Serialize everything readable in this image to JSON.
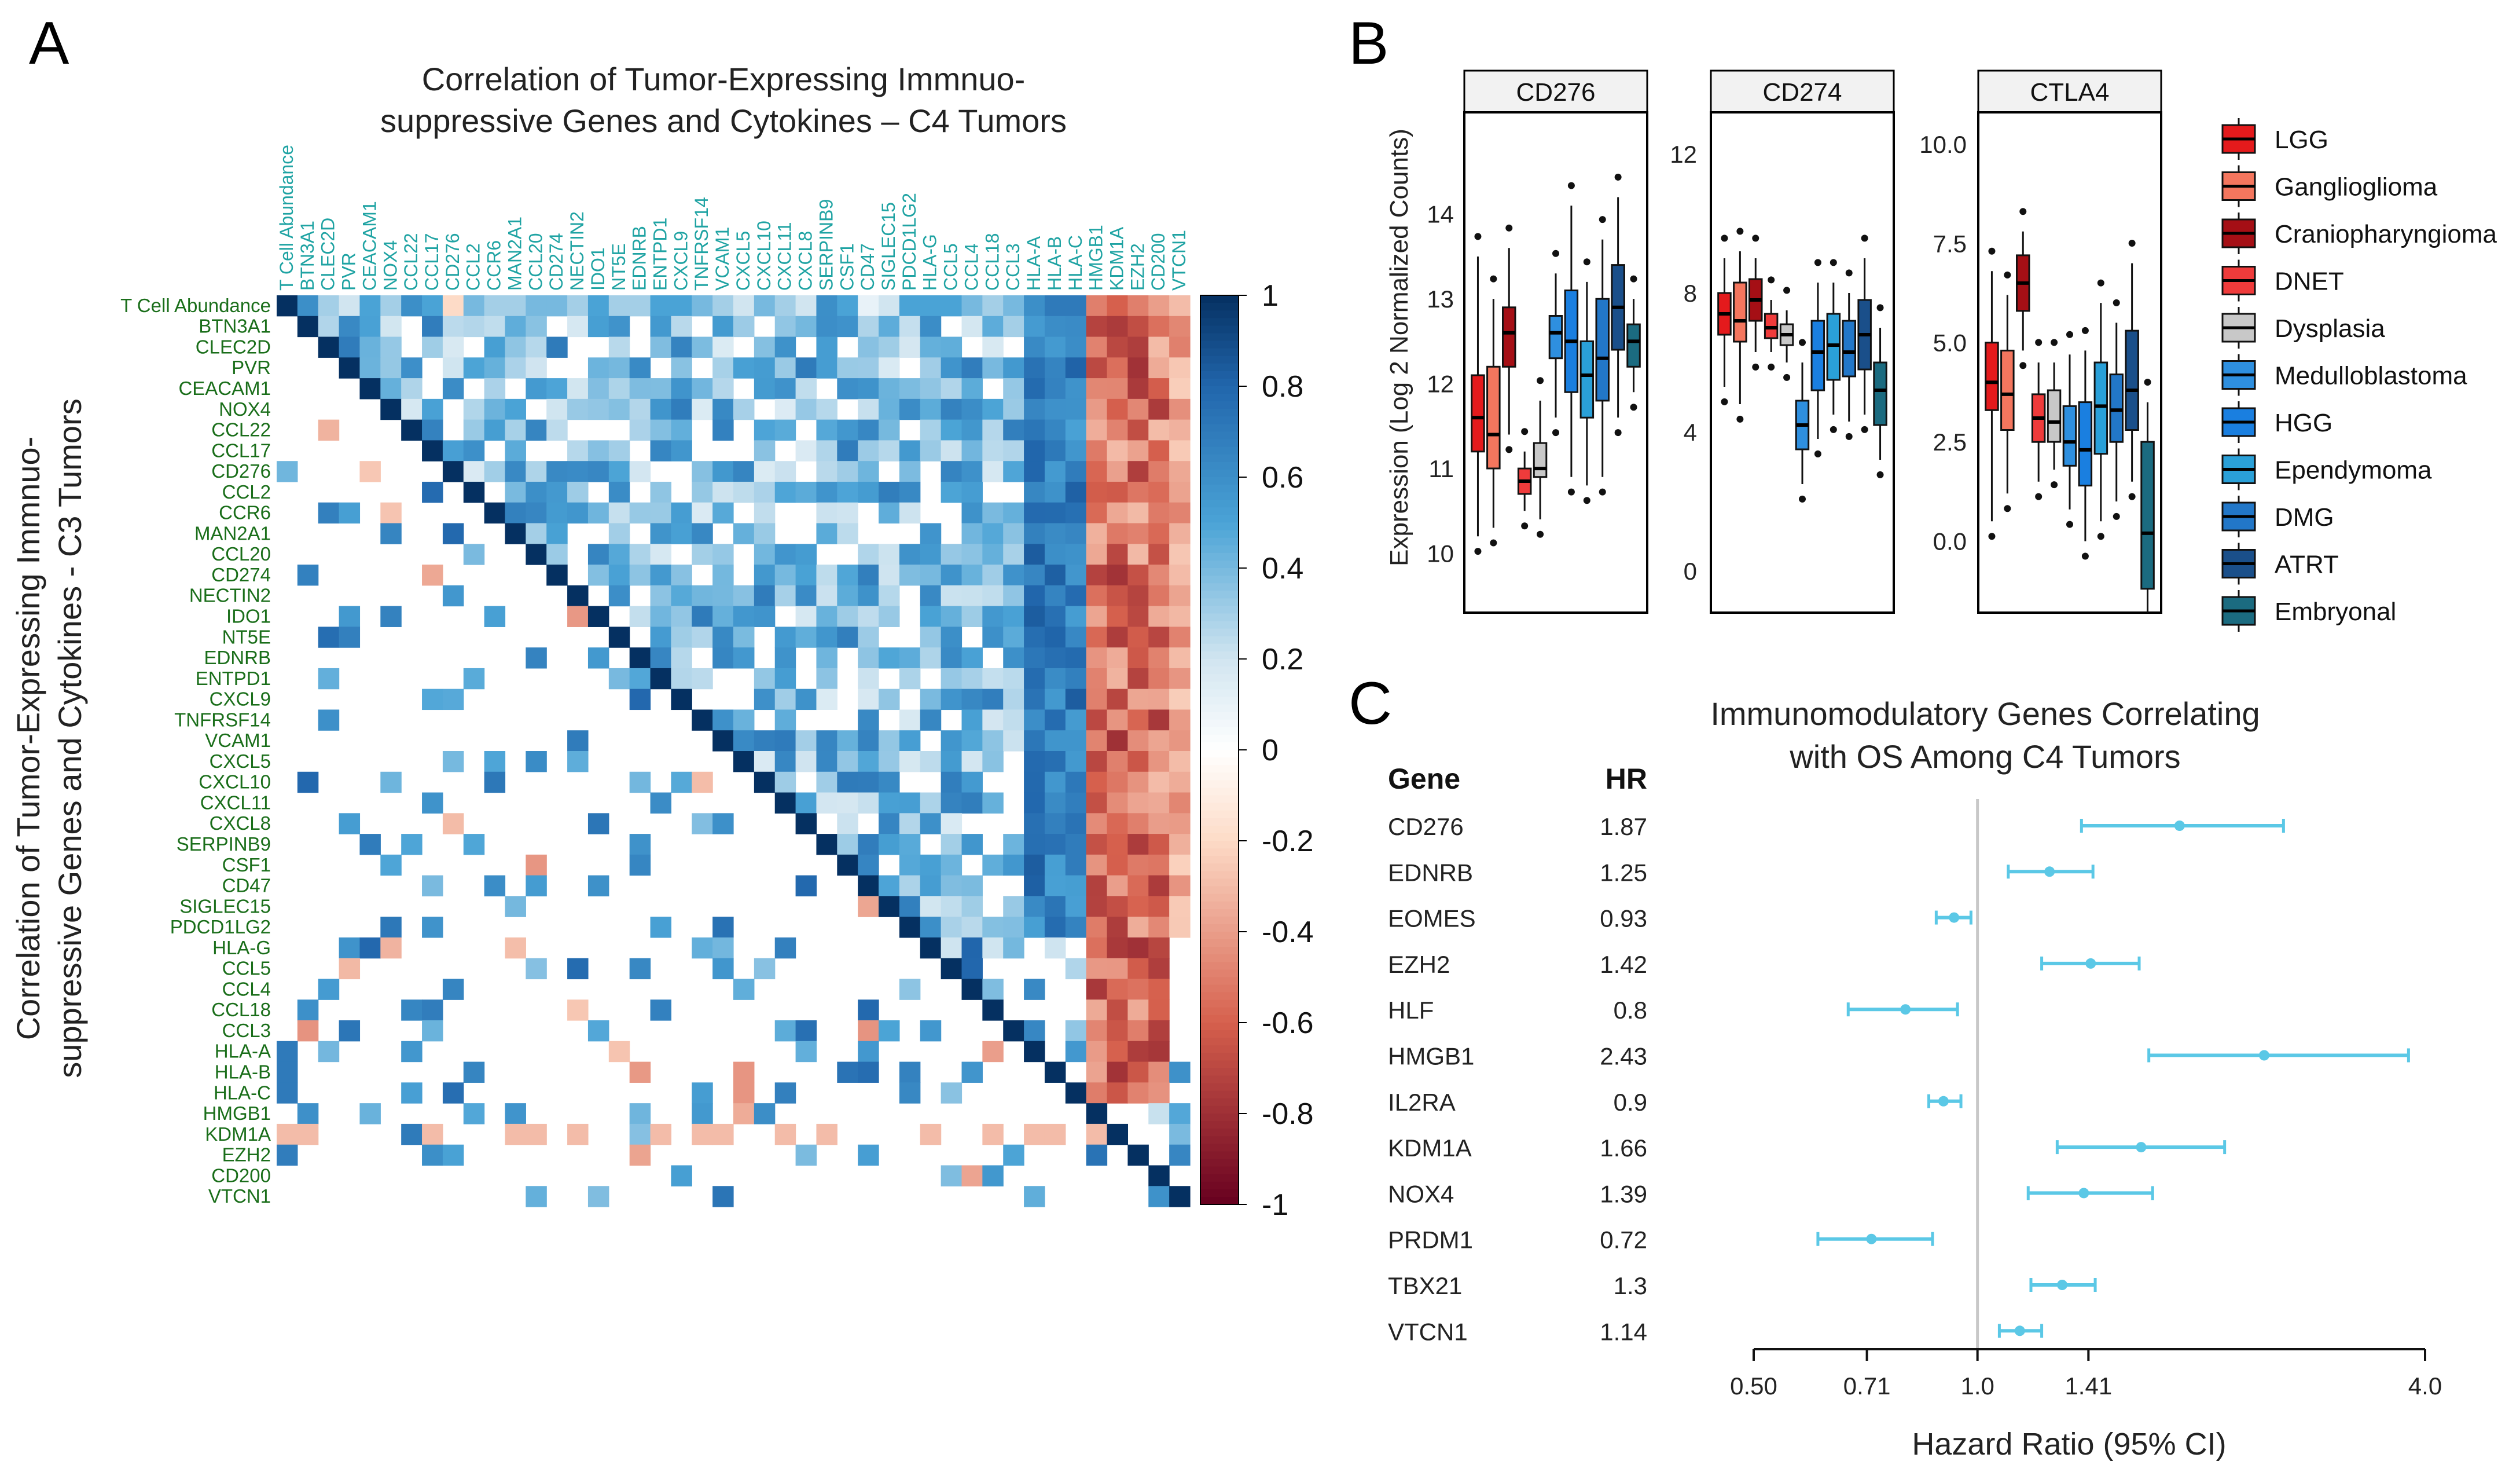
{
  "panel_labels": [
    "A",
    "B",
    "C"
  ],
  "colors": {
    "heat_neg": "#67001f",
    "heat_mid": "#ffffff",
    "heat_pos": "#053061",
    "row_label": "#1a6e1a",
    "col_label": "#1fa3a3",
    "forest": "#5bc8e6",
    "ref_line": "#c8c8c8"
  },
  "chart_data": [
    {
      "id": "A",
      "type": "heatmap",
      "title_lines": [
        "Correlation of Tumor-Expressing Immnuo-",
        "suppressive Genes and Cytokines – C4 Tumors"
      ],
      "ylabel_lines": [
        "Correlation of Tumor-Expressing Immnuo-",
        "suppressive Genes and Cytokines - C3 Tumors"
      ],
      "genes": [
        "T Cell Abundance",
        "BTN3A1",
        "CLEC2D",
        "PVR",
        "CEACAM1",
        "NOX4",
        "CCL22",
        "CCL17",
        "CD276",
        "CCL2",
        "CCR6",
        "MAN2A1",
        "CCL20",
        "CD274",
        "NECTIN2",
        "IDO1",
        "NT5E",
        "EDNRB",
        "ENTPD1",
        "CXCL9",
        "TNFRSF14",
        "VCAM1",
        "CXCL5",
        "CXCL10",
        "CXCL11",
        "CXCL8",
        "SERPINB9",
        "CSF1",
        "CD47",
        "SIGLEC15",
        "PDCD1LG2",
        "HLA-G",
        "CCL5",
        "CCL4",
        "CCL18",
        "CCL3",
        "HLA-A",
        "HLA-B",
        "HLA-C",
        "HMGB1",
        "KDM1A",
        "EZH2",
        "CD200",
        "VTCN1"
      ],
      "colorbar_ticks": [
        "1",
        "0.8",
        "0.6",
        "0.4",
        "0.2",
        "0",
        "-0.2",
        "-0.4",
        "-0.6",
        "-0.8",
        "-1"
      ],
      "colorbar_range": [
        -1,
        1
      ],
      "values": {
        "upper_C4_row_T_Cell_Abundance": [
          1,
          0.6,
          0.3,
          0.2,
          0.5,
          0.3,
          0.6,
          0.5,
          -0.2,
          0.4,
          0.3,
          0.3,
          0.4,
          0.4,
          0.3,
          0.5,
          0.3,
          0.3,
          0.5,
          0.5,
          0.4,
          0.3,
          0.2,
          0.4,
          0.3,
          0.2,
          0.6,
          0.5,
          0.1,
          0.2,
          0.5,
          0.5,
          0.5,
          0.4,
          0.3,
          0.4,
          0.6,
          0.7,
          0.7,
          -0.5,
          -0.6,
          -0.5,
          -0.4,
          -0.3
        ],
        "upper_C4_cols_HLA_A_to_C": [
          0.7,
          0.8,
          0.8
        ],
        "upper_C4_cols_HMGB1_KDM1A": [
          -0.5,
          -0.7
        ],
        "lower_C3_rows_HLA_A_to_C_col_T_Cell_Abundance": [
          0.7,
          0.7,
          0.6
        ],
        "lower_C3_row_KDM1A": [
          -0.3,
          -0.3
        ]
      }
    },
    {
      "id": "B",
      "type": "box",
      "ylabel": "Expression (Log 2 Normalized Counts)",
      "legend": [
        "LGG",
        "Ganglioglioma",
        "Craniopharyngioma",
        "DNET",
        "Dysplasia",
        "Medulloblastoma",
        "HGG",
        "Ependymoma",
        "DMG",
        "ATRT",
        "Embryonal"
      ],
      "legend_colors": [
        "#e41a1c",
        "#f4765e",
        "#a50f15",
        "#ef3b3b",
        "#c8c8c8",
        "#2e8fdf",
        "#1a7fe0",
        "#2aa0d8",
        "#2277c8",
        "#1a4f8a",
        "#1b6b80"
      ],
      "facets": [
        {
          "title": "CD276",
          "ylim": [
            9.3,
            15.2
          ],
          "yticks": [
            "10",
            "11",
            "12",
            "13",
            "14"
          ],
          "tick_values": [
            10,
            11,
            12,
            13,
            14
          ],
          "boxes": [
            {
              "group": "LGG",
              "q1": 11.2,
              "med": 11.6,
              "q3": 12.1,
              "lo": 10.2,
              "hi": 13.5
            },
            {
              "group": "Ganglioglioma",
              "q1": 11.0,
              "med": 11.4,
              "q3": 12.2,
              "lo": 10.3,
              "hi": 13.0
            },
            {
              "group": "Craniopharyngioma",
              "q1": 12.2,
              "med": 12.6,
              "q3": 12.9,
              "lo": 11.4,
              "hi": 13.6
            },
            {
              "group": "DNET",
              "q1": 10.7,
              "med": 10.85,
              "q3": 11.0,
              "lo": 10.5,
              "hi": 11.2
            },
            {
              "group": "Dysplasia",
              "q1": 10.9,
              "med": 11.0,
              "q3": 11.3,
              "lo": 10.4,
              "hi": 11.8
            },
            {
              "group": "Medulloblastoma",
              "q1": 12.3,
              "med": 12.6,
              "q3": 12.8,
              "lo": 11.6,
              "hi": 13.3
            },
            {
              "group": "HGG",
              "q1": 11.9,
              "med": 12.5,
              "q3": 13.1,
              "lo": 10.9,
              "hi": 14.1
            },
            {
              "group": "Ependymoma",
              "q1": 11.6,
              "med": 12.1,
              "q3": 12.5,
              "lo": 10.8,
              "hi": 13.2
            },
            {
              "group": "DMG",
              "q1": 11.8,
              "med": 12.3,
              "q3": 13.0,
              "lo": 10.9,
              "hi": 13.7
            },
            {
              "group": "ATRT",
              "q1": 12.4,
              "med": 12.9,
              "q3": 13.4,
              "lo": 11.6,
              "hi": 14.2
            },
            {
              "group": "Embryonal",
              "q1": 12.2,
              "med": 12.5,
              "q3": 12.7,
              "lo": 11.9,
              "hi": 13.0
            }
          ]
        },
        {
          "title": "CD274",
          "ylim": [
            -1.2,
            13.2
          ],
          "yticks": [
            "0",
            "4",
            "8",
            "12"
          ],
          "tick_values": [
            0,
            4,
            8,
            12
          ],
          "boxes": [
            {
              "group": "LGG",
              "q1": 6.8,
              "med": 7.4,
              "q3": 8.0,
              "lo": 5.3,
              "hi": 9.0
            },
            {
              "group": "Ganglioglioma",
              "q1": 6.6,
              "med": 7.2,
              "q3": 8.3,
              "lo": 4.8,
              "hi": 9.2
            },
            {
              "group": "Craniopharyngioma",
              "q1": 7.2,
              "med": 7.8,
              "q3": 8.4,
              "lo": 6.3,
              "hi": 9.0
            },
            {
              "group": "DNET",
              "q1": 6.7,
              "med": 7.0,
              "q3": 7.4,
              "lo": 6.3,
              "hi": 7.8
            },
            {
              "group": "Dysplasia",
              "q1": 6.5,
              "med": 6.8,
              "q3": 7.1,
              "lo": 6.0,
              "hi": 7.5
            },
            {
              "group": "Medulloblastoma",
              "q1": 3.5,
              "med": 4.2,
              "q3": 4.9,
              "lo": 2.5,
              "hi": 6.0
            },
            {
              "group": "HGG",
              "q1": 5.2,
              "med": 6.3,
              "q3": 7.2,
              "lo": 3.8,
              "hi": 8.3
            },
            {
              "group": "Ependymoma",
              "q1": 5.5,
              "med": 6.5,
              "q3": 7.4,
              "lo": 4.5,
              "hi": 8.3
            },
            {
              "group": "DMG",
              "q1": 5.6,
              "med": 6.3,
              "q3": 7.2,
              "lo": 4.3,
              "hi": 8.0
            },
            {
              "group": "ATRT",
              "q1": 5.8,
              "med": 6.8,
              "q3": 7.8,
              "lo": 4.5,
              "hi": 9.0
            },
            {
              "group": "Embryonal",
              "q1": 4.2,
              "med": 5.2,
              "q3": 6.0,
              "lo": 3.2,
              "hi": 7.0
            }
          ]
        },
        {
          "title": "CTLA4",
          "ylim": [
            -1.8,
            10.8
          ],
          "yticks": [
            "0.0",
            "2.5",
            "5.0",
            "7.5",
            "10.0"
          ],
          "tick_values": [
            0,
            2.5,
            5,
            7.5,
            10
          ],
          "boxes": [
            {
              "group": "LGG",
              "q1": 3.3,
              "med": 4.0,
              "q3": 5.0,
              "lo": 0.5,
              "hi": 6.8
            },
            {
              "group": "Ganglioglioma",
              "q1": 2.8,
              "med": 3.7,
              "q3": 4.8,
              "lo": 1.2,
              "hi": 6.2
            },
            {
              "group": "Craniopharyngioma",
              "q1": 5.8,
              "med": 6.5,
              "q3": 7.2,
              "lo": 4.8,
              "hi": 7.8
            },
            {
              "group": "DNET",
              "q1": 2.5,
              "med": 3.1,
              "q3": 3.7,
              "lo": 1.5,
              "hi": 4.5
            },
            {
              "group": "Dysplasia",
              "q1": 2.5,
              "med": 3.0,
              "q3": 3.8,
              "lo": 1.8,
              "hi": 4.5
            },
            {
              "group": "Medulloblastoma",
              "q1": 1.9,
              "med": 2.5,
              "q3": 3.4,
              "lo": 0.8,
              "hi": 4.7
            },
            {
              "group": "HGG",
              "q1": 1.4,
              "med": 2.3,
              "q3": 3.5,
              "lo": 0.0,
              "hi": 4.8
            },
            {
              "group": "Ependymoma",
              "q1": 2.2,
              "med": 3.4,
              "q3": 4.5,
              "lo": 0.5,
              "hi": 6.0
            },
            {
              "group": "DMG",
              "q1": 2.5,
              "med": 3.3,
              "q3": 4.2,
              "lo": 1.0,
              "hi": 5.5
            },
            {
              "group": "ATRT",
              "q1": 2.8,
              "med": 3.8,
              "q3": 5.3,
              "lo": 1.5,
              "hi": 7.0
            },
            {
              "group": "Embryonal",
              "q1": -1.2,
              "med": 0.2,
              "q3": 2.5,
              "lo": -1.8,
              "hi": 3.5
            }
          ]
        }
      ]
    },
    {
      "id": "C",
      "type": "forest",
      "title_lines": [
        "Immunomodulatory Genes Correlating",
        "with OS Among C4 Tumors"
      ],
      "col_gene_header": "Gene",
      "col_hr_header": "HR",
      "xlabel": "Hazard Ratio (95% CI)",
      "xscale": "log2",
      "xlim": [
        0.5,
        4.0
      ],
      "xticks": [
        "0.50",
        "0.71",
        "1.0",
        "1.41",
        "4.0"
      ],
      "xtick_values": [
        0.5,
        0.71,
        1.0,
        1.41,
        4.0
      ],
      "reference": 1.0,
      "rows": [
        {
          "gene": "CD276",
          "hr_label": "1.87",
          "hr": 1.87,
          "lo": 1.38,
          "hi": 2.58
        },
        {
          "gene": "EDNRB",
          "hr_label": "1.25",
          "hr": 1.25,
          "lo": 1.1,
          "hi": 1.43
        },
        {
          "gene": "EOMES",
          "hr_label": "0.93",
          "hr": 0.93,
          "lo": 0.88,
          "hi": 0.98
        },
        {
          "gene": "EZH2",
          "hr_label": "1.42",
          "hr": 1.42,
          "lo": 1.22,
          "hi": 1.65
        },
        {
          "gene": "HLF",
          "hr_label": "0.8",
          "hr": 0.8,
          "lo": 0.67,
          "hi": 0.94
        },
        {
          "gene": "HMGB1",
          "hr_label": "2.43",
          "hr": 2.43,
          "lo": 1.7,
          "hi": 3.8
        },
        {
          "gene": "IL2RA",
          "hr_label": "0.9",
          "hr": 0.9,
          "lo": 0.86,
          "hi": 0.95
        },
        {
          "gene": "KDM1A",
          "hr_label": "1.66",
          "hr": 1.66,
          "lo": 1.28,
          "hi": 2.15
        },
        {
          "gene": "NOX4",
          "hr_label": "1.39",
          "hr": 1.39,
          "lo": 1.17,
          "hi": 1.72
        },
        {
          "gene": "PRDM1",
          "hr_label": "0.72",
          "hr": 0.72,
          "lo": 0.61,
          "hi": 0.87
        },
        {
          "gene": "TBX21",
          "hr_label": "1.3",
          "hr": 1.3,
          "lo": 1.18,
          "hi": 1.44
        },
        {
          "gene": "VTCN1",
          "hr_label": "1.14",
          "hr": 1.14,
          "lo": 1.07,
          "hi": 1.22
        }
      ]
    }
  ]
}
